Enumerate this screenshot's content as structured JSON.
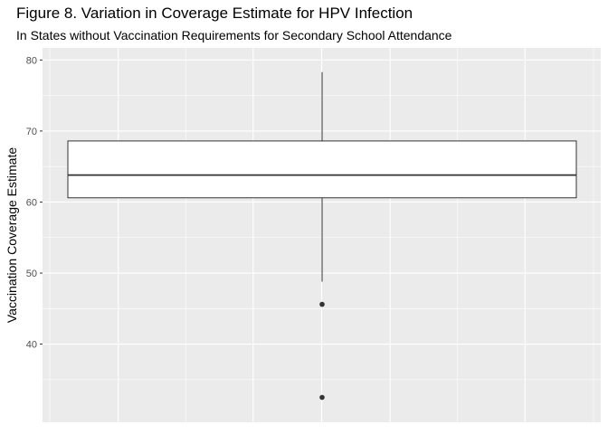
{
  "chart_data": {
    "type": "boxplot",
    "title": "Figure 8. Variation in Coverage Estimate for HPV Infection",
    "subtitle": "In States without Vaccination Requirements for Secondary School Attendance",
    "xlabel": "",
    "ylabel": "Vaccination Coverage Estimate",
    "ylim": [
      29,
      81.7
    ],
    "y_ticks": [
      40,
      50,
      60,
      70,
      80
    ],
    "grid": true,
    "box": {
      "min": 48.8,
      "q1": 60.6,
      "median": 63.8,
      "q3": 68.6,
      "max": 78.3,
      "outliers": [
        45.6,
        32.5
      ]
    },
    "colors": {
      "panel": "#ebebeb",
      "grid": "#ffffff",
      "box_fill": "#ffffff",
      "box_stroke": "#333333",
      "outlier": "#333333"
    }
  }
}
